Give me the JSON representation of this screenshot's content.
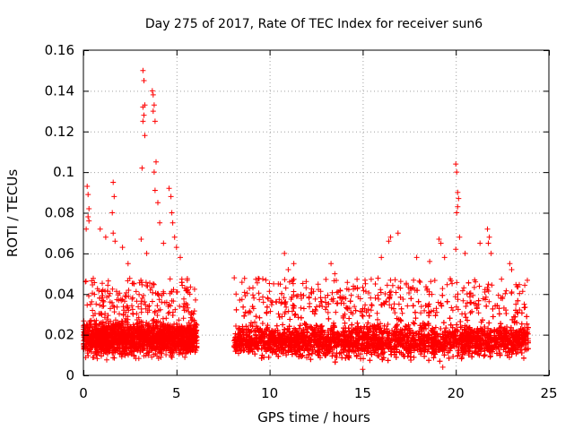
{
  "chart_data": {
    "type": "scatter",
    "title": "Day 275 of 2017, Rate Of TEC Index for receiver sun6",
    "xlabel": "GPS time / hours",
    "ylabel": "ROTI / TECUs",
    "xlim": [
      0,
      25
    ],
    "ylim": [
      0,
      0.16
    ],
    "xticks": [
      0,
      5,
      10,
      15,
      20,
      25
    ],
    "xtick_labels": [
      "0",
      "5",
      "10",
      "15",
      "20",
      "25"
    ],
    "yticks": [
      0,
      0.02,
      0.04,
      0.06,
      0.08,
      0.1,
      0.12,
      0.14,
      0.16
    ],
    "ytick_labels": [
      "0",
      "0.02",
      "0.04",
      "0.06",
      "0.08",
      "0.1",
      "0.12",
      "0.14",
      "0.16"
    ],
    "grid": true,
    "marker": "+",
    "color": "#ff0000",
    "series": [
      {
        "name": "ROTI",
        "segments": [
          {
            "x_range": [
              0,
              6.1
            ],
            "baseline": 0.018,
            "spread": 0.008,
            "floor": 0.005
          },
          {
            "x_range": [
              8.1,
              23.9
            ],
            "baseline": 0.017,
            "spread": 0.008,
            "floor": 0.004
          }
        ],
        "notable_points": [
          {
            "x": 3.2,
            "y": 0.15
          },
          {
            "x": 3.25,
            "y": 0.145
          },
          {
            "x": 3.3,
            "y": 0.133
          },
          {
            "x": 3.2,
            "y": 0.132
          },
          {
            "x": 3.25,
            "y": 0.128
          },
          {
            "x": 3.2,
            "y": 0.125
          },
          {
            "x": 3.3,
            "y": 0.118
          },
          {
            "x": 3.15,
            "y": 0.102
          },
          {
            "x": 3.7,
            "y": 0.14
          },
          {
            "x": 3.75,
            "y": 0.138
          },
          {
            "x": 3.8,
            "y": 0.133
          },
          {
            "x": 3.75,
            "y": 0.13
          },
          {
            "x": 3.85,
            "y": 0.125
          },
          {
            "x": 3.9,
            "y": 0.105
          },
          {
            "x": 3.8,
            "y": 0.1
          },
          {
            "x": 3.85,
            "y": 0.091
          },
          {
            "x": 4.0,
            "y": 0.085
          },
          {
            "x": 4.1,
            "y": 0.075
          },
          {
            "x": 4.6,
            "y": 0.092
          },
          {
            "x": 4.7,
            "y": 0.088
          },
          {
            "x": 4.75,
            "y": 0.08
          },
          {
            "x": 4.8,
            "y": 0.075
          },
          {
            "x": 4.9,
            "y": 0.068
          },
          {
            "x": 5.0,
            "y": 0.063
          },
          {
            "x": 0.2,
            "y": 0.093
          },
          {
            "x": 0.25,
            "y": 0.089
          },
          {
            "x": 0.3,
            "y": 0.082
          },
          {
            "x": 0.25,
            "y": 0.078
          },
          {
            "x": 0.3,
            "y": 0.076
          },
          {
            "x": 0.15,
            "y": 0.072
          },
          {
            "x": 1.6,
            "y": 0.095
          },
          {
            "x": 1.65,
            "y": 0.088
          },
          {
            "x": 1.55,
            "y": 0.08
          },
          {
            "x": 1.6,
            "y": 0.07
          },
          {
            "x": 1.7,
            "y": 0.066
          },
          {
            "x": 0.9,
            "y": 0.072
          },
          {
            "x": 1.2,
            "y": 0.068
          },
          {
            "x": 2.1,
            "y": 0.063
          },
          {
            "x": 2.4,
            "y": 0.055
          },
          {
            "x": 3.1,
            "y": 0.067
          },
          {
            "x": 3.4,
            "y": 0.06
          },
          {
            "x": 4.3,
            "y": 0.065
          },
          {
            "x": 5.2,
            "y": 0.058
          },
          {
            "x": 8.1,
            "y": 0.048
          },
          {
            "x": 8.2,
            "y": 0.04
          },
          {
            "x": 10.8,
            "y": 0.06
          },
          {
            "x": 11.0,
            "y": 0.052
          },
          {
            "x": 11.3,
            "y": 0.055
          },
          {
            "x": 13.3,
            "y": 0.055
          },
          {
            "x": 13.5,
            "y": 0.05
          },
          {
            "x": 16.4,
            "y": 0.066
          },
          {
            "x": 16.5,
            "y": 0.068
          },
          {
            "x": 16.9,
            "y": 0.07
          },
          {
            "x": 16.0,
            "y": 0.058
          },
          {
            "x": 17.9,
            "y": 0.058
          },
          {
            "x": 18.6,
            "y": 0.056
          },
          {
            "x": 19.1,
            "y": 0.067
          },
          {
            "x": 19.2,
            "y": 0.065
          },
          {
            "x": 19.4,
            "y": 0.058
          },
          {
            "x": 20.0,
            "y": 0.104
          },
          {
            "x": 20.05,
            "y": 0.1
          },
          {
            "x": 20.1,
            "y": 0.09
          },
          {
            "x": 20.15,
            "y": 0.087
          },
          {
            "x": 20.1,
            "y": 0.083
          },
          {
            "x": 20.05,
            "y": 0.08
          },
          {
            "x": 20.2,
            "y": 0.068
          },
          {
            "x": 20.0,
            "y": 0.062
          },
          {
            "x": 20.5,
            "y": 0.06
          },
          {
            "x": 21.7,
            "y": 0.072
          },
          {
            "x": 21.8,
            "y": 0.068
          },
          {
            "x": 21.75,
            "y": 0.065
          },
          {
            "x": 21.9,
            "y": 0.06
          },
          {
            "x": 22.9,
            "y": 0.055
          },
          {
            "x": 23.0,
            "y": 0.052
          },
          {
            "x": 21.3,
            "y": 0.065
          },
          {
            "x": 19.3,
            "y": 0.004
          },
          {
            "x": 15.0,
            "y": 0.003
          }
        ]
      }
    ]
  }
}
